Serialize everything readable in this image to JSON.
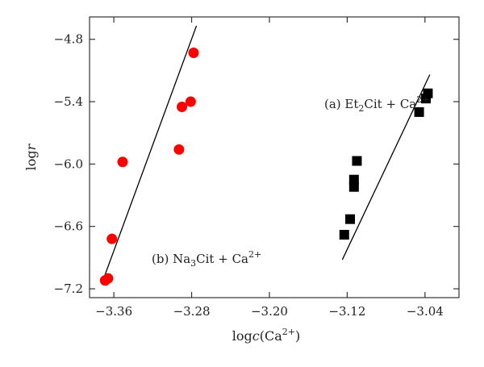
{
  "chart_data": {
    "type": "scatter",
    "xlabel": "logc(Ca2+)",
    "ylabel": "logr",
    "xlim": [
      -3.385,
      -3.005
    ],
    "ylim": [
      -7.285,
      -4.585
    ],
    "x_ticks": [
      -3.36,
      -3.28,
      -3.2,
      -3.12,
      -3.04
    ],
    "x_tick_labels": [
      "−3.36",
      "−3.28",
      "−3.20",
      "−3.12",
      "−3.04"
    ],
    "y_ticks": [
      -4.8,
      -5.4,
      -6.0,
      -6.6,
      -7.2
    ],
    "y_tick_labels": [
      "−4.8",
      "−5.4",
      "−6.0",
      "−6.6",
      "−7.2"
    ],
    "grid": false,
    "series": [
      {
        "name": "(a) Et2Cit + Ca2+",
        "color": "#000000",
        "marker": "square",
        "points": [
          [
            -3.123,
            -6.68
          ],
          [
            -3.117,
            -6.53
          ],
          [
            -3.113,
            -6.22
          ],
          [
            -3.113,
            -6.15
          ],
          [
            -3.11,
            -5.97
          ],
          [
            -3.046,
            -5.5
          ],
          [
            -3.039,
            -5.37
          ],
          [
            -3.037,
            -5.32
          ]
        ],
        "fit": [
          [
            -3.125,
            -6.92
          ],
          [
            -3.035,
            -5.14
          ]
        ]
      },
      {
        "name": "(b) Na3Cit + Ca2+",
        "color": "#ff0000",
        "marker": "circle",
        "points": [
          [
            -3.369,
            -7.12
          ],
          [
            -3.366,
            -7.1
          ],
          [
            -3.362,
            -6.72
          ],
          [
            -3.351,
            -5.98
          ],
          [
            -3.293,
            -5.86
          ],
          [
            -3.29,
            -5.45
          ],
          [
            -3.281,
            -5.4
          ],
          [
            -3.278,
            -4.93
          ]
        ],
        "fit": [
          [
            -3.372,
            -7.14
          ],
          [
            -3.275,
            -4.67
          ]
        ]
      }
    ],
    "annotations": [
      {
        "label": "(a) Et",
        "sub": "2",
        "mid": "Cit + Ca",
        "sup": "2+"
      },
      {
        "label": "(b) Na",
        "sub": "3",
        "mid": "Cit + Ca",
        "sup": "2+"
      }
    ],
    "xlabel_parts": {
      "pre": "log",
      "italic": "c",
      "mid": "(Ca",
      "sup": "2+",
      "post": ")"
    },
    "ylabel_parts": {
      "pre": "log",
      "italic": "r"
    }
  }
}
